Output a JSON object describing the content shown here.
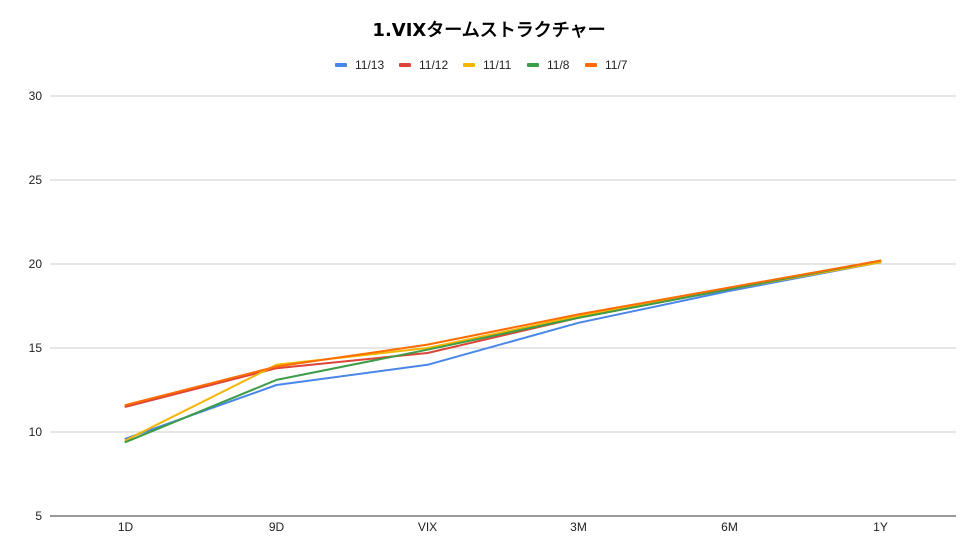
{
  "chart_data": {
    "type": "line",
    "title": "1.VIXタームストラクチャー",
    "xlabel": "",
    "ylabel": "",
    "categories": [
      "1D",
      "9D",
      "VIX",
      "3M",
      "6M",
      "1Y"
    ],
    "ylim": [
      5,
      30
    ],
    "yticks": [
      5,
      10,
      15,
      20,
      25,
      30
    ],
    "grid": true,
    "legend_position": "top",
    "series": [
      {
        "name": "11/13",
        "color": "#4a86e8",
        "values": [
          9.6,
          12.8,
          14.0,
          16.5,
          18.4,
          20.1
        ]
      },
      {
        "name": "11/12",
        "color": "#db4437",
        "values": [
          11.5,
          13.8,
          14.7,
          16.8,
          18.5,
          20.2
        ]
      },
      {
        "name": "11/11",
        "color": "#f4b400",
        "values": [
          9.5,
          14.0,
          15.0,
          16.9,
          18.5,
          20.1
        ]
      },
      {
        "name": "11/8",
        "color": "#3d9c48",
        "values": [
          9.4,
          13.1,
          14.9,
          16.8,
          18.5,
          20.2
        ]
      },
      {
        "name": "11/7",
        "color": "#ff6d01",
        "values": [
          11.6,
          13.9,
          15.2,
          17.0,
          18.6,
          20.2
        ]
      }
    ]
  }
}
